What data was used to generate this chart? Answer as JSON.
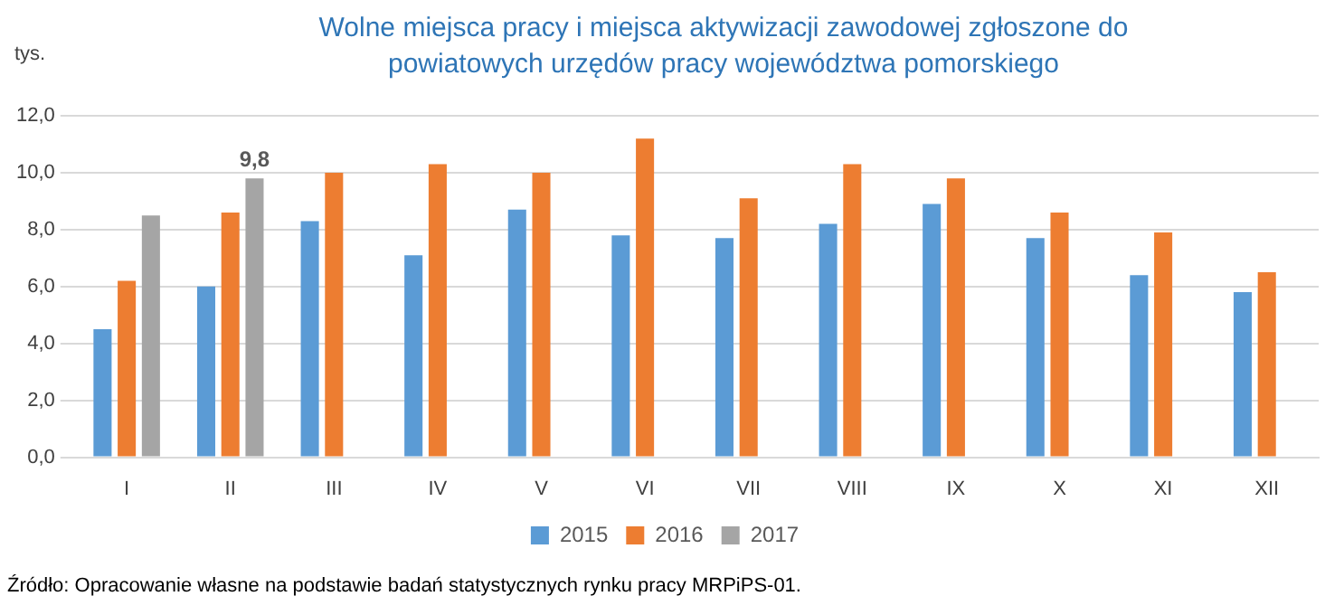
{
  "chart_data": {
    "type": "bar",
    "title": "Wolne miejsca pracy i miejsca aktywizacji zawodowej zgłoszone do powiatowych urzędów pracy województwa pomorskiego",
    "ylabel": "tys.",
    "categories": [
      "I",
      "II",
      "III",
      "IV",
      "V",
      "VI",
      "VII",
      "VIII",
      "IX",
      "X",
      "XI",
      "XII"
    ],
    "series": [
      {
        "name": "2015",
        "color": "#5b9bd5",
        "values": [
          4.5,
          6.0,
          8.3,
          7.1,
          8.7,
          7.8,
          7.7,
          8.2,
          8.9,
          7.7,
          6.4,
          5.8
        ]
      },
      {
        "name": "2016",
        "color": "#ed7d31",
        "values": [
          6.2,
          8.6,
          10.0,
          10.3,
          10.0,
          11.2,
          9.1,
          10.3,
          9.8,
          8.6,
          7.9,
          6.5
        ]
      },
      {
        "name": "2017",
        "color": "#a5a5a5",
        "values": [
          8.5,
          9.8,
          null,
          null,
          null,
          null,
          null,
          null,
          null,
          null,
          null,
          null
        ],
        "value_labels": [
          null,
          "9,8",
          null,
          null,
          null,
          null,
          null,
          null,
          null,
          null,
          null,
          null
        ]
      }
    ],
    "ylim": [
      0,
      12
    ],
    "yticks": [
      {
        "value": 0,
        "label": "0,0"
      },
      {
        "value": 2,
        "label": "2,0"
      },
      {
        "value": 4,
        "label": "4,0"
      },
      {
        "value": 6,
        "label": "6,0"
      },
      {
        "value": 8,
        "label": "8,0"
      },
      {
        "value": 10,
        "label": "10,0"
      },
      {
        "value": 12,
        "label": "12,0"
      }
    ],
    "grid": "y",
    "legend": "bottom",
    "annotations": [
      "Źródło: Opracowanie własne na podstawie badań statystycznych rynku pracy MRPiPS-01."
    ]
  }
}
